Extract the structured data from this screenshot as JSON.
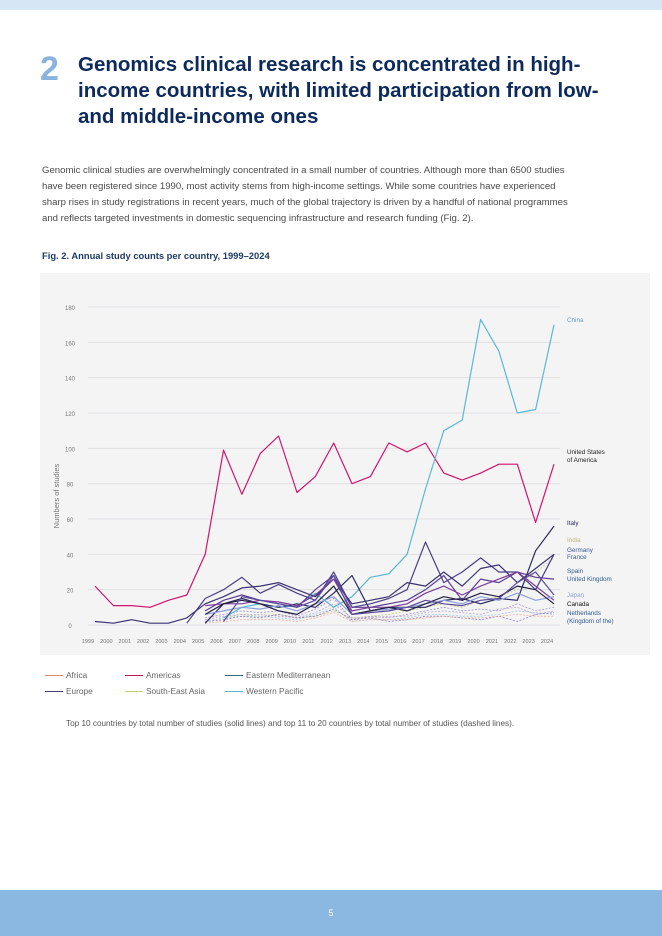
{
  "section_number": "2",
  "title": "Genomics clinical research is concentrated in high-income countries, with limited participation from low- and middle-income ones",
  "paragraph_lines": [
    "Genomic clinical studies are overwhelmingly concentrated in a small number of countries. Although more than 6500 studies",
    "have been registered since 1990, most activity stems from high-income settings. While some countries have experienced",
    "sharp rises in study registrations in recent years, much of the global trajectory is driven by a handful of national programmes",
    "and reflects targeted investments in domestic sequencing infrastructure and research funding (Fig. 2)."
  ],
  "figure_caption": "Fig. 2. Annual study counts per country, 1999–2024",
  "chart_data": {
    "type": "line",
    "ylabel": "Numbers of studies",
    "xlabel": "",
    "ylim": [
      0,
      180
    ],
    "yticks": [
      0,
      20,
      40,
      60,
      80,
      100,
      120,
      140,
      160,
      180
    ],
    "grid": true,
    "x": [
      1999,
      2000,
      2001,
      2002,
      2003,
      2004,
      2005,
      2006,
      2007,
      2008,
      2009,
      2010,
      2011,
      2012,
      2013,
      2014,
      2015,
      2016,
      2017,
      2018,
      2019,
      2020,
      2021,
      2022,
      2023,
      2024
    ],
    "legend": [
      {
        "name": "Africa",
        "color": "#e8846a"
      },
      {
        "name": "Americas",
        "color": "#c2185b"
      },
      {
        "name": "Eastern Mediterranean",
        "color": "#2f6b73"
      },
      {
        "name": "Europe",
        "color": "#4a3d7a"
      },
      {
        "name": "South-East Asia",
        "color": "#c9cf6a"
      },
      {
        "name": "Western Pacific",
        "color": "#5bb8cf"
      }
    ],
    "series": [
      {
        "name": "United States of America",
        "region": "Americas",
        "color": "#d0156b",
        "dashed": false,
        "values": [
          22,
          11,
          11,
          10,
          14,
          17,
          40,
          99,
          74,
          97,
          107,
          75,
          84,
          103,
          80,
          84,
          103,
          98,
          103,
          86,
          82,
          86,
          91,
          91,
          58,
          91
        ]
      },
      {
        "name": "China",
        "region": "Western Pacific",
        "color": "#5bb8d4",
        "dashed": false,
        "values": [
          null,
          null,
          null,
          null,
          null,
          null,
          null,
          4,
          10,
          12,
          10,
          11,
          18,
          10,
          16,
          27,
          29,
          40,
          77,
          110,
          116,
          173,
          155,
          120,
          122,
          170
        ]
      },
      {
        "name": "Italy",
        "region": "Europe",
        "color": "#2b2a5c",
        "dashed": false,
        "values": [
          null,
          null,
          null,
          null,
          null,
          null,
          1,
          12,
          15,
          12,
          10,
          12,
          10,
          18,
          28,
          8,
          10,
          10,
          10,
          14,
          15,
          12,
          15,
          14,
          42,
          56
        ]
      },
      {
        "name": "Germany",
        "region": "Europe",
        "color": "#4c3f86",
        "dashed": false,
        "values": [
          null,
          null,
          null,
          null,
          null,
          1,
          15,
          20,
          27,
          18,
          23,
          18,
          14,
          30,
          10,
          12,
          15,
          20,
          47,
          24,
          30,
          38,
          30,
          30,
          20,
          40
        ]
      },
      {
        "name": "France",
        "region": "Europe",
        "color": "#3b3470",
        "dashed": false,
        "values": [
          2,
          1,
          3,
          1,
          1,
          4,
          12,
          16,
          21,
          22,
          24,
          20,
          16,
          26,
          12,
          14,
          16,
          24,
          22,
          30,
          22,
          32,
          34,
          24,
          32,
          40
        ]
      },
      {
        "name": "Spain",
        "region": "Europe",
        "color": "#5b3f92",
        "dashed": false,
        "values": [
          null,
          null,
          null,
          null,
          null,
          null,
          8,
          14,
          17,
          14,
          12,
          10,
          20,
          28,
          10,
          10,
          12,
          14,
          20,
          28,
          14,
          26,
          24,
          30,
          27,
          26
        ]
      },
      {
        "name": "United Kingdom",
        "region": "Europe",
        "color": "#7a3f9a",
        "dashed": false,
        "values": [
          null,
          null,
          null,
          null,
          null,
          null,
          11,
          12,
          12,
          14,
          13,
          11,
          17,
          26,
          8,
          10,
          10,
          12,
          18,
          22,
          17,
          22,
          26,
          30,
          22,
          14
        ]
      },
      {
        "name": "Japan",
        "region": "Western Pacific",
        "color": "#8fa0d8",
        "dashed": false,
        "values": [
          null,
          null,
          null,
          null,
          null,
          null,
          6,
          8,
          10,
          9,
          11,
          8,
          12,
          16,
          6,
          8,
          9,
          10,
          12,
          14,
          12,
          16,
          14,
          18,
          14,
          16
        ]
      },
      {
        "name": "Canada",
        "region": "Americas",
        "color": "#222040",
        "dashed": false,
        "values": [
          null,
          null,
          null,
          null,
          null,
          null,
          6,
          12,
          14,
          12,
          8,
          6,
          12,
          22,
          6,
          8,
          10,
          8,
          12,
          16,
          14,
          18,
          16,
          22,
          20,
          12
        ]
      },
      {
        "name": "Netherlands (Kingdom of the)",
        "region": "Europe",
        "color": "#5a4b9a",
        "dashed": false,
        "values": [
          null,
          null,
          null,
          null,
          null,
          null,
          null,
          2,
          16,
          14,
          12,
          10,
          14,
          28,
          6,
          7,
          8,
          10,
          14,
          12,
          11,
          14,
          15,
          24,
          30,
          17
        ]
      },
      {
        "name": "India",
        "region": "South-East Asia",
        "color": "#c9c98a",
        "dashed": true,
        "values": [
          null,
          null,
          null,
          null,
          null,
          null,
          null,
          4,
          6,
          5,
          6,
          4,
          5,
          8,
          4,
          5,
          6,
          8,
          10,
          12,
          10,
          14,
          16,
          20,
          30,
          38
        ]
      },
      {
        "name": "",
        "region": "Europe",
        "color": "#a28fc7",
        "dashed": true,
        "values": [
          null,
          null,
          null,
          null,
          null,
          null,
          4,
          6,
          8,
          7,
          8,
          5,
          9,
          15,
          3,
          5,
          4,
          6,
          8,
          10,
          8,
          9,
          8,
          12,
          8,
          10
        ]
      },
      {
        "name": "",
        "region": "Europe",
        "color": "#b8a6cf",
        "dashed": true,
        "values": [
          null,
          null,
          null,
          null,
          null,
          null,
          3,
          5,
          6,
          6,
          5,
          4,
          7,
          12,
          4,
          4,
          5,
          5,
          7,
          8,
          7,
          6,
          9,
          10,
          6,
          8
        ]
      },
      {
        "name": "",
        "region": "Western Pacific",
        "color": "#9fc9dc",
        "dashed": true,
        "values": [
          null,
          null,
          null,
          null,
          null,
          null,
          2,
          4,
          5,
          5,
          4,
          3,
          6,
          10,
          2,
          3,
          3,
          4,
          6,
          6,
          5,
          5,
          6,
          8,
          7,
          6
        ]
      },
      {
        "name": "",
        "region": "Europe",
        "color": "#8c7ab8",
        "dashed": true,
        "values": [
          null,
          null,
          null,
          null,
          null,
          null,
          2,
          3,
          5,
          4,
          6,
          4,
          5,
          9,
          3,
          4,
          2,
          3,
          5,
          5,
          4,
          3,
          5,
          2,
          6,
          7
        ]
      },
      {
        "name": "",
        "region": "Africa",
        "color": "#e8b0a0",
        "dashed": true,
        "values": [
          null,
          null,
          null,
          null,
          null,
          null,
          1,
          2,
          3,
          3,
          3,
          2,
          4,
          7,
          2,
          3,
          3,
          3,
          4,
          5,
          4,
          4,
          5,
          6,
          5,
          5
        ]
      }
    ],
    "end_labels": [
      {
        "text": "China",
        "color": "#5b9bd0"
      },
      {
        "text": "United States",
        "color": "#222"
      },
      {
        "text": "of America",
        "color": "#222"
      },
      {
        "text": "Italy",
        "color": "#2b2a5c"
      },
      {
        "text": "India",
        "color": "#b7b77a"
      },
      {
        "text": "Germany",
        "color": "#3b5a90"
      },
      {
        "text": "France",
        "color": "#3b5a90"
      },
      {
        "text": "Spain",
        "color": "#2f5a8f"
      },
      {
        "text": "United Kingdom",
        "color": "#2f5a8f"
      },
      {
        "text": "Japan",
        "color": "#8fa0d8"
      },
      {
        "text": "Canada",
        "color": "#111"
      },
      {
        "text": "Netherlands",
        "color": "#2f5a8f"
      },
      {
        "text": "(Kingdom of the)",
        "color": "#2f5a8f"
      }
    ]
  },
  "note": "Top 10 countries by total number of studies (solid lines) and top 11 to 20 countries by total number of studies (dashed lines).",
  "page_number": "5"
}
